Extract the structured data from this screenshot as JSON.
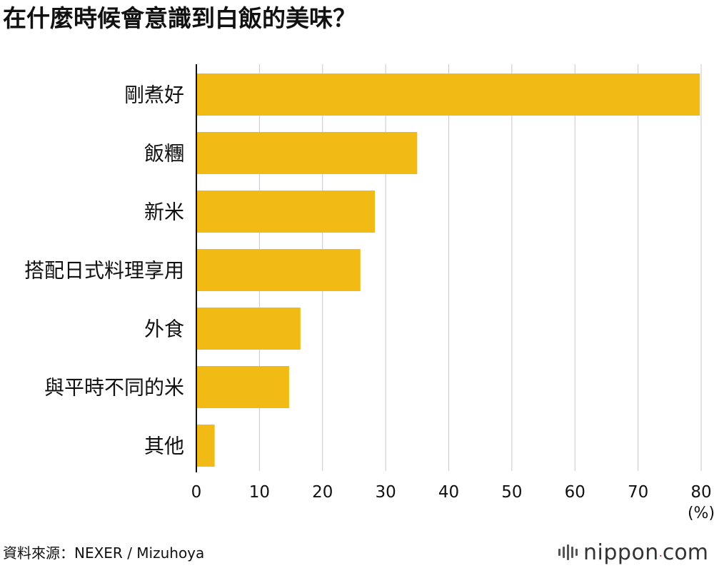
{
  "title": "在什麼時候會意識到白飯的美味？",
  "source": "資料來源：NEXER / Mizuhoya",
  "brand": {
    "name": "nippon",
    "dot": ".",
    "tld": "com"
  },
  "colors": {
    "bar": "#F2BA14",
    "grid": "#c8c8c8",
    "axis": "#111111"
  },
  "chart_data": {
    "type": "bar",
    "orientation": "horizontal",
    "categories": [
      "剛煮好",
      "飯糰",
      "新米",
      "搭配日式料理享用",
      "外食",
      "與平時不同的米",
      "其他"
    ],
    "values": [
      79.8,
      35.0,
      28.3,
      26.0,
      16.5,
      14.7,
      2.9
    ],
    "xlim": [
      0,
      80
    ],
    "xticks": [
      0,
      10,
      20,
      30,
      40,
      50,
      60,
      70,
      80
    ],
    "xunit": "(%)",
    "grid": true
  }
}
